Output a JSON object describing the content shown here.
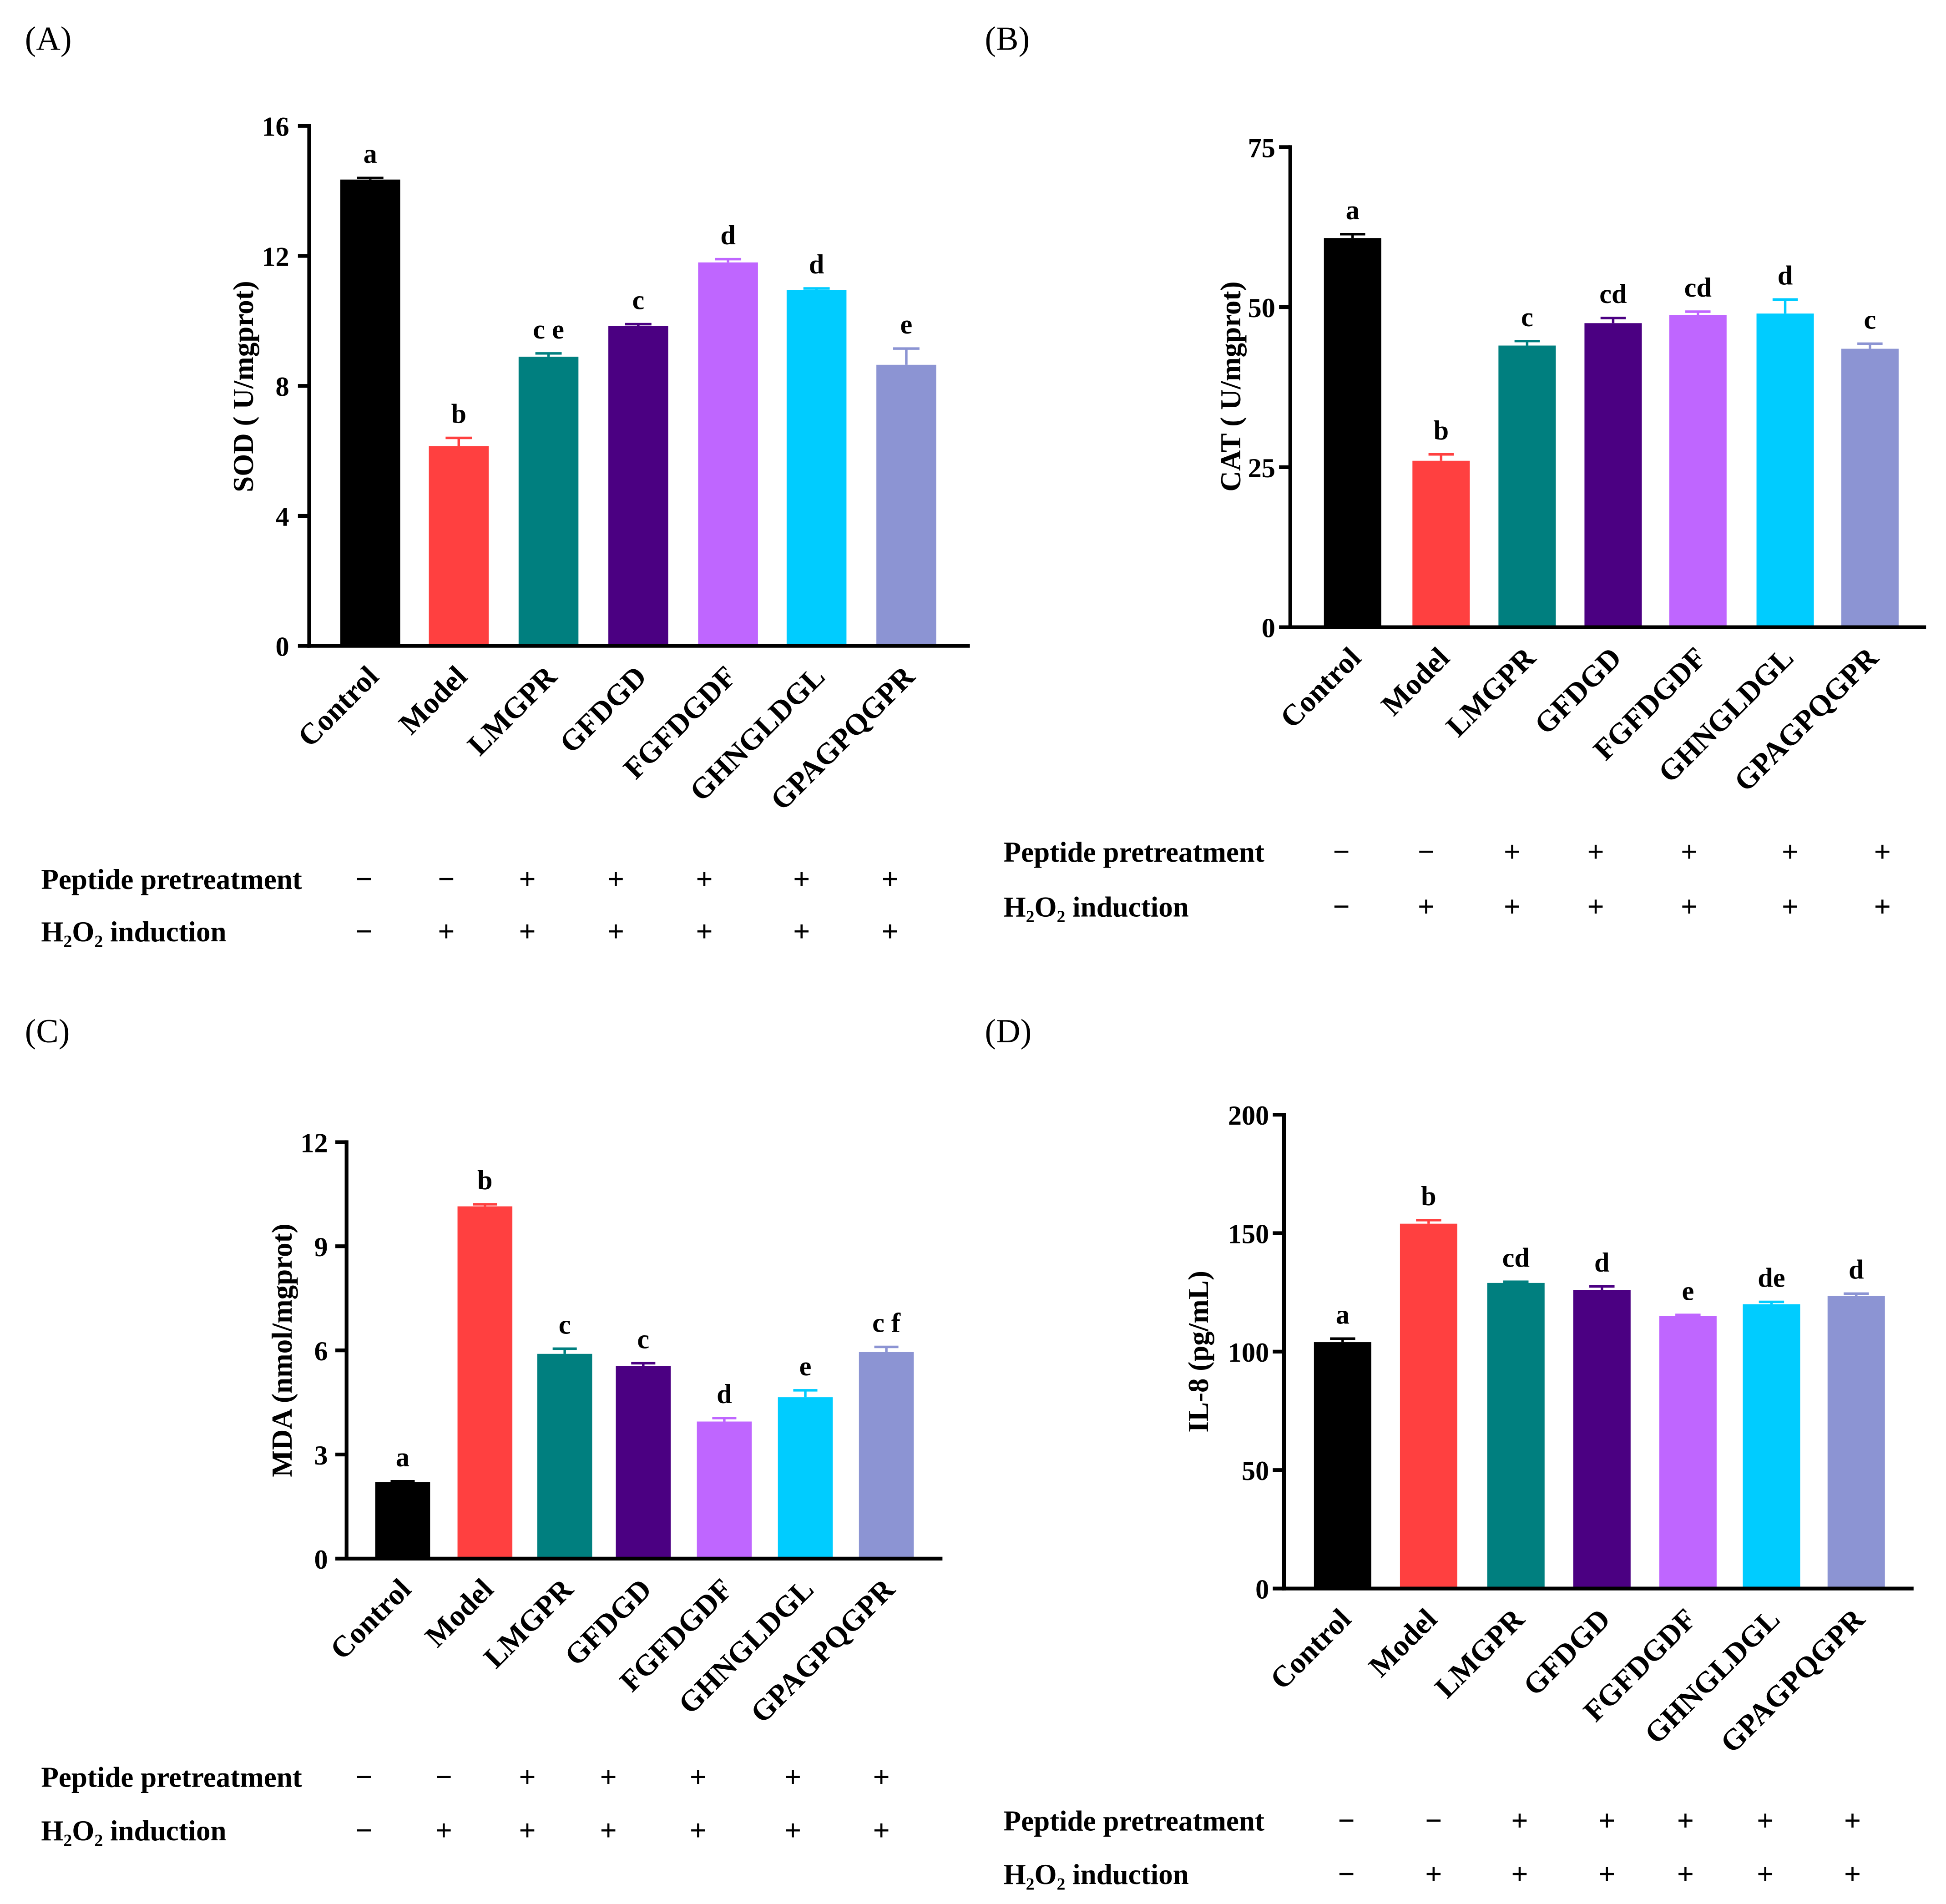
{
  "colors": {
    "bars": [
      "#000000",
      "#FF4040",
      "#007F7F",
      "#4B0082",
      "#BF66FF",
      "#00CCFF",
      "#8C94D3"
    ],
    "axis": "#000000"
  },
  "chart_data": [
    {
      "panel_label": "(A)",
      "type": "bar",
      "categories": [
        "Control",
        "Model",
        "LMGPR",
        "GFDGD",
        "FGFDGDF",
        "GHNGLDGL",
        "GPAGPQGPR"
      ],
      "values": [
        14.35,
        6.15,
        8.9,
        9.85,
        11.8,
        10.95,
        8.65
      ],
      "errors": [
        0.05,
        0.25,
        0.1,
        0.05,
        0.1,
        0.05,
        0.5
      ],
      "significance": [
        "a",
        "b",
        "c e",
        "c",
        "d",
        "d",
        "e"
      ],
      "ylabel": "SOD ( U/mgprot)",
      "ylim": [
        0,
        16
      ],
      "yticks": [
        0,
        4,
        8,
        12,
        16
      ],
      "treatments": {
        "peptide_label": "Peptide pretreatment",
        "peptide": [
          "−",
          "−",
          "+",
          "+",
          "+",
          "+",
          "+"
        ],
        "h2o2_label": "H₂O₂ induction",
        "h2o2": [
          "−",
          "+",
          "+",
          "+",
          "+",
          "+",
          "+"
        ]
      }
    },
    {
      "panel_label": "(B)",
      "type": "bar",
      "categories": [
        "Control",
        "Model",
        "LMGPR",
        "GFDGD",
        "FGFDGDF",
        "GHNGLDGL",
        "GPAGPQGPR"
      ],
      "values": [
        60.8,
        26,
        44,
        47.5,
        48.8,
        49,
        43.5
      ],
      "errors": [
        0.6,
        1.0,
        0.7,
        0.8,
        0.5,
        2.2,
        0.8
      ],
      "significance": [
        "a",
        "b",
        "c",
        "cd",
        "cd",
        "d",
        "c"
      ],
      "ylabel": "CAT ( U/mgprot)",
      "ylim": [
        0,
        75
      ],
      "yticks": [
        0,
        25,
        50,
        75
      ],
      "treatments": {
        "peptide_label": "Peptide pretreatment",
        "peptide": [
          "−",
          "−",
          "+",
          "+",
          "+",
          "+",
          "+"
        ],
        "h2o2_label": "H₂O₂ induction",
        "h2o2": [
          "−",
          "+",
          "+",
          "+",
          "+",
          "+",
          "+"
        ]
      }
    },
    {
      "panel_label": "(C)",
      "type": "bar",
      "categories": [
        "Control",
        "Model",
        "LMGPR",
        "GFDGD",
        "FGFDGDF",
        "GHNGLDGL",
        "GPAGPQGPR"
      ],
      "values": [
        2.2,
        10.15,
        5.9,
        5.55,
        3.95,
        4.65,
        5.95
      ],
      "errors": [
        0.03,
        0.06,
        0.15,
        0.08,
        0.1,
        0.2,
        0.15
      ],
      "significance": [
        "a",
        "b",
        "c",
        "c",
        "d",
        "e",
        "c f"
      ],
      "ylabel": "MDA (nmol/mgprot)",
      "ylim": [
        0,
        12
      ],
      "yticks": [
        0,
        3,
        6,
        9,
        12
      ],
      "treatments": {
        "peptide_label": "Peptide pretreatment",
        "peptide": [
          "−",
          "−",
          "+",
          "+",
          "+",
          "+",
          "+"
        ],
        "h2o2_label": "H₂O₂ induction",
        "h2o2": [
          "−",
          "+",
          "+",
          "+",
          "+",
          "+",
          "+"
        ]
      }
    },
    {
      "panel_label": "(D)",
      "type": "bar",
      "categories": [
        "Control",
        "Model",
        "LMGPR",
        "GFDGD",
        "FGFDGDF",
        "GHNGLDGL",
        "GPAGPQGPR"
      ],
      "values": [
        104,
        154,
        129,
        126,
        115,
        120,
        123.5
      ],
      "errors": [
        1.5,
        1.5,
        0.5,
        1.5,
        0.5,
        1.0,
        1.0
      ],
      "significance": [
        "a",
        "b",
        "cd",
        "d",
        "e",
        "de",
        "d"
      ],
      "ylabel": "IL-8 (pg/mL)",
      "ylim": [
        0,
        200
      ],
      "yticks": [
        0,
        50,
        100,
        150,
        200
      ],
      "treatments": {
        "peptide_label": "Peptide pretreatment",
        "peptide": [
          "−",
          "−",
          "+",
          "+",
          "+",
          "+",
          "+"
        ],
        "h2o2_label": "H₂O₂ induction",
        "h2o2": [
          "−",
          "+",
          "+",
          "+",
          "+",
          "+",
          "+"
        ]
      }
    }
  ]
}
